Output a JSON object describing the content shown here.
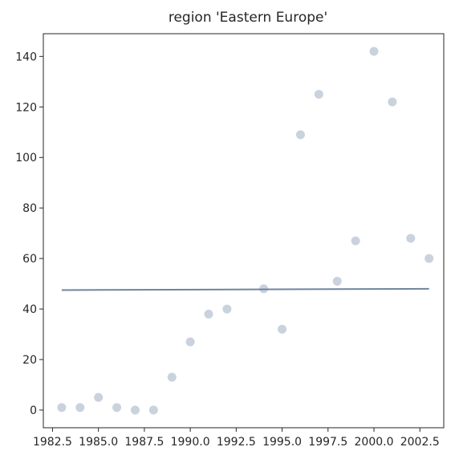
{
  "chart_data": {
    "type": "scatter",
    "title": "region 'Eastern Europe'",
    "xlabel": "",
    "ylabel": "",
    "xlim": [
      1982.0,
      2003.8
    ],
    "ylim": [
      -7,
      149
    ],
    "x_ticks": [
      1982.5,
      1985.0,
      1987.5,
      1990.0,
      1992.5,
      1995.0,
      1997.5,
      2000.0,
      2002.5
    ],
    "x_tick_labels": [
      "1982.5",
      "1985.0",
      "1987.5",
      "1990.0",
      "1992.5",
      "1995.0",
      "1997.5",
      "2000.0",
      "2002.5"
    ],
    "y_ticks": [
      0,
      20,
      40,
      60,
      80,
      100,
      120,
      140
    ],
    "y_tick_labels": [
      "0",
      "20",
      "40",
      "60",
      "80",
      "100",
      "120",
      "140"
    ],
    "grid": false,
    "series": [
      {
        "kind": "scatter",
        "color": "#c9d2dd",
        "x": [
          1983,
          1984,
          1985,
          1986,
          1987,
          1988,
          1989,
          1990,
          1991,
          1992,
          1994,
          1995,
          1996,
          1997,
          1998,
          1999,
          2000,
          2001,
          2002,
          2003
        ],
        "y": [
          1,
          1,
          5,
          1,
          0,
          0,
          13,
          27,
          38,
          40,
          48,
          32,
          109,
          125,
          51,
          67,
          142,
          122,
          68,
          60
        ]
      },
      {
        "kind": "line",
        "color": "#6f859e",
        "x": [
          1983,
          2003
        ],
        "y": [
          47.5,
          48.0
        ]
      }
    ]
  }
}
